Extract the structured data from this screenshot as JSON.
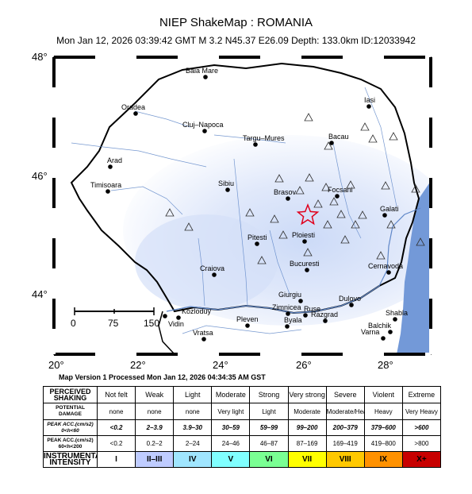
{
  "header": {
    "title": "NIEP ShakeMap : ROMANIA",
    "subtitle": "Mon Jan 12, 2026 03:39:42 GMT   M 3.2   N45.37 E26.09   Depth: 133.0km   ID:12033942"
  },
  "axes": {
    "lat_labels": [
      "48°",
      "46°",
      "44°"
    ],
    "lon_labels": [
      "20°",
      "22°",
      "24°",
      "26°",
      "28°"
    ]
  },
  "scale_bar": {
    "labels": [
      "0",
      "75",
      "150"
    ]
  },
  "cities": [
    {
      "name": "Baia Mare"
    },
    {
      "name": "Oradea"
    },
    {
      "name": "Iasi"
    },
    {
      "name": "Cluj–Napoca"
    },
    {
      "name": "Targu–Mures"
    },
    {
      "name": "Bacau"
    },
    {
      "name": "Arad"
    },
    {
      "name": "Sibiu"
    },
    {
      "name": "Timisoara"
    },
    {
      "name": "Brasov"
    },
    {
      "name": "Focsani"
    },
    {
      "name": "Galati"
    },
    {
      "name": "Ploiesti"
    },
    {
      "name": "Pitesti"
    },
    {
      "name": "Bucuresti"
    },
    {
      "name": "Cernavoda"
    },
    {
      "name": "Craiova"
    },
    {
      "name": "Giurgiu"
    },
    {
      "name": "Zimnicea"
    },
    {
      "name": "Dulovo"
    },
    {
      "name": "Ruse"
    },
    {
      "name": "Kozloduy"
    },
    {
      "name": "Vidin"
    },
    {
      "name": "Pleven"
    },
    {
      "name": "Byala"
    },
    {
      "name": "Razgrad"
    },
    {
      "name": "Shabla"
    },
    {
      "name": "Balchik"
    },
    {
      "name": "Varna"
    },
    {
      "name": "Vratsa"
    }
  ],
  "map_version": "Map Version 1 Processed Mon Jan 12, 2026 04:34:35 AM GST",
  "legend": {
    "perceived": {
      "header": "PERCEIVED SHAKING",
      "values": [
        "Not felt",
        "Weak",
        "Light",
        "Moderate",
        "Strong",
        "Very strong",
        "Severe",
        "Violent",
        "Extreme"
      ]
    },
    "damage": {
      "header": "POTENTIAL DAMAGE",
      "values": [
        "none",
        "none",
        "none",
        "Very light",
        "Light",
        "Moderate",
        "Moderate/Heavy",
        "Heavy",
        "Very Heavy"
      ]
    },
    "acc_shallow": {
      "header": "PEAK ACC.(cm/s2) 0<h<60",
      "values": [
        "<0.2",
        "2–3.9",
        "3.9–30",
        "30–59",
        "59–99",
        "99–200",
        "200–379",
        "379–600",
        ">600"
      ]
    },
    "acc_deep": {
      "header": "PEAK ACC.(cm/s2) 60<h<200",
      "values": [
        "<0.2",
        "0.2–2",
        "2–24",
        "24–46",
        "46–87",
        "87–169",
        "169–419",
        "419–800",
        ">800"
      ]
    },
    "intensity": {
      "header": "INSTRUMENTAL INTENSITY",
      "values": [
        "I",
        "II–III",
        "IV",
        "V",
        "VI",
        "VII",
        "VIII",
        "IX",
        "X+"
      ]
    },
    "colors": [
      "#ffffff",
      "#bfccff",
      "#a0e6ff",
      "#80ffff",
      "#7aff93",
      "#ffff00",
      "#ffc800",
      "#ff9100",
      "#c80000"
    ]
  }
}
